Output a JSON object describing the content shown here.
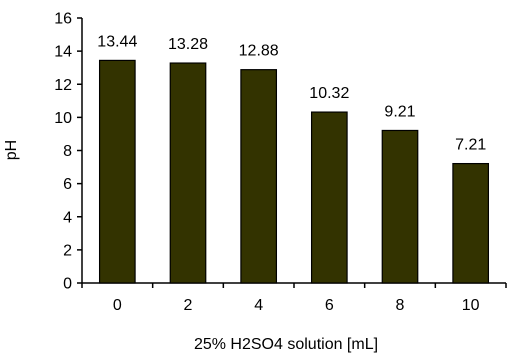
{
  "chart_data": {
    "type": "bar",
    "title": "",
    "xlabel": "25% H2SO4 solution  [mL]",
    "ylabel": "pH",
    "categories": [
      "0",
      "2",
      "4",
      "6",
      "8",
      "10"
    ],
    "values": [
      13.44,
      13.28,
      12.88,
      10.32,
      9.21,
      7.21
    ],
    "data_labels": [
      "13.44",
      "13.28",
      "12.88",
      "10.32",
      "9.21",
      "7.21"
    ],
    "ylim": [
      0,
      16
    ],
    "yticks": [
      0,
      2,
      4,
      6,
      8,
      10,
      12,
      14,
      16
    ],
    "ytick_labels": [
      "0",
      "2",
      "4",
      "6",
      "8",
      "10",
      "12",
      "14",
      "16"
    ],
    "grid": false,
    "legend": "none",
    "bar_color": "#333300",
    "bar_edge_color": "#000000",
    "axis_color": "#000000"
  }
}
